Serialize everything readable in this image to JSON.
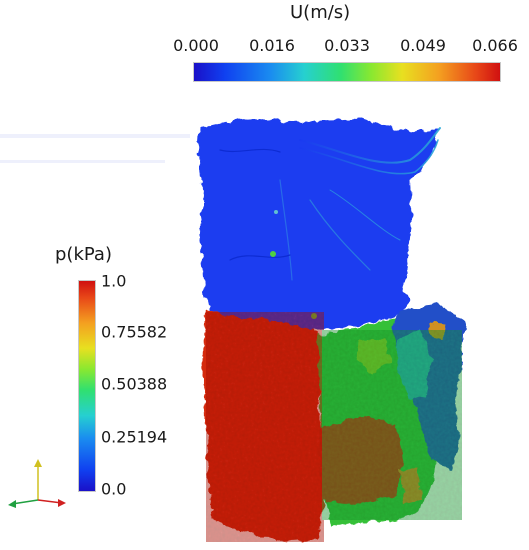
{
  "velocity_legend": {
    "title": "U(m/s)",
    "ticks": [
      "0.000",
      "0.016",
      "0.033",
      "0.049",
      "0.066"
    ]
  },
  "pressure_legend": {
    "title": "p(kPa)",
    "ticks": [
      "1.0",
      "0.75582",
      "0.50388",
      "0.25194",
      "0.0"
    ]
  },
  "colors": {
    "low": "#1a10c8",
    "mid": "#30e070",
    "high": "#d01010",
    "axis_x": "#d02020",
    "axis_y": "#d0c020",
    "axis_z": "#20a040"
  },
  "icons": {
    "orientation": "orientation-axes-icon"
  }
}
